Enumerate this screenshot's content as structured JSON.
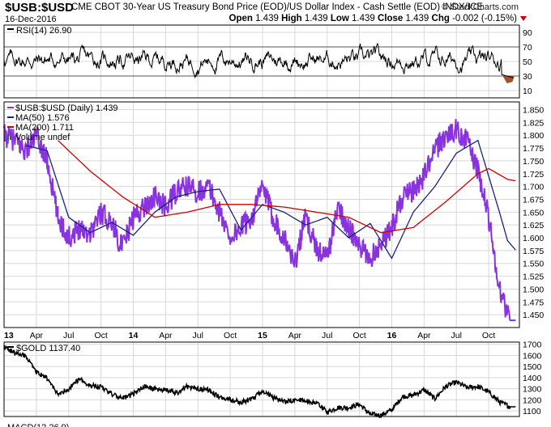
{
  "header": {
    "ticker": "$USB:$USD",
    "description": "CME CBOT 30-Year US Treasury Bond Price (EOD)/US Dollar Index - Cash Settle (EOD)  INDX/ICE",
    "brand": "© StockCharts.com",
    "date": "16-Dec-2016",
    "open_label": "Open",
    "open": "1.439",
    "high_label": "High",
    "high": "1.439",
    "low_label": "Low",
    "low": "1.439",
    "close_label": "Close",
    "close": "1.439",
    "chg_label": "Chg",
    "chg": "-0.002 (-0.15%)"
  },
  "colors": {
    "price": "#8833dd",
    "ma50": "#1a237e",
    "ma200": "#cc0000",
    "rsi": "#000000",
    "gold": "#000000",
    "rsi_oversold_fill": "#a0522d",
    "grid": "#d8d8d8",
    "arrow_down": "#c00000"
  },
  "legend_main": [
    {
      "text": "$USB:$USD (Daily) 1.439",
      "color": "#8833dd",
      "icon": "line-swatch"
    },
    {
      "text": "MA(50) 1.576",
      "color": "#1a237e",
      "icon": "line-swatch"
    },
    {
      "text": "MA(200) 1.711",
      "color": "#cc0000",
      "icon": "line-swatch"
    },
    {
      "text": "Volume undef",
      "color": "#555555",
      "icon": "volume-bars-icon"
    }
  ],
  "legend_rsi": {
    "text": "RSI(14) 26.90"
  },
  "legend_gold": {
    "text": "$GOLD 1137.40"
  },
  "footer_partial": "MACD(12,26,9) ...",
  "chart_data": [
    {
      "type": "line",
      "name": "rsi-panel",
      "series": [
        {
          "name": "RSI(14)",
          "last": 26.9
        }
      ],
      "yticks": [
        10,
        30,
        50,
        70,
        90
      ],
      "ylim": [
        0,
        100
      ],
      "reference_lines": [
        70,
        30
      ]
    },
    {
      "type": "line",
      "name": "price-panel",
      "series": [
        {
          "name": "$USB:$USD (Daily)",
          "last": 1.439,
          "points": [
            [
              "2013-01",
              1.8
            ],
            [
              "2013-02",
              1.79
            ],
            [
              "2013-03",
              1.77
            ],
            [
              "2013-04",
              1.8
            ],
            [
              "2013-05",
              1.75
            ],
            [
              "2013-06",
              1.64
            ],
            [
              "2013-07",
              1.6
            ],
            [
              "2013-08",
              1.62
            ],
            [
              "2013-09",
              1.61
            ],
            [
              "2013-10",
              1.65
            ],
            [
              "2013-11",
              1.63
            ],
            [
              "2013-12",
              1.58
            ],
            [
              "2014-01",
              1.64
            ],
            [
              "2014-02",
              1.66
            ],
            [
              "2014-03",
              1.68
            ],
            [
              "2014-04",
              1.66
            ],
            [
              "2014-05",
              1.69
            ],
            [
              "2014-06",
              1.7
            ],
            [
              "2014-07",
              1.69
            ],
            [
              "2014-08",
              1.7
            ],
            [
              "2014-09",
              1.65
            ],
            [
              "2014-10",
              1.6
            ],
            [
              "2014-11",
              1.62
            ],
            [
              "2014-12",
              1.64
            ],
            [
              "2015-01",
              1.7
            ],
            [
              "2015-02",
              1.64
            ],
            [
              "2015-03",
              1.6
            ],
            [
              "2015-04",
              1.55
            ],
            [
              "2015-05",
              1.64
            ],
            [
              "2015-06",
              1.58
            ],
            [
              "2015-07",
              1.56
            ],
            [
              "2015-08",
              1.66
            ],
            [
              "2015-09",
              1.62
            ],
            [
              "2015-10",
              1.58
            ],
            [
              "2015-11",
              1.56
            ],
            [
              "2015-12",
              1.59
            ],
            [
              "2016-01",
              1.62
            ],
            [
              "2016-02",
              1.68
            ],
            [
              "2016-03",
              1.69
            ],
            [
              "2016-04",
              1.72
            ],
            [
              "2016-05",
              1.77
            ],
            [
              "2016-06",
              1.8
            ],
            [
              "2016-07",
              1.81
            ],
            [
              "2016-08",
              1.79
            ],
            [
              "2016-09",
              1.73
            ],
            [
              "2016-10",
              1.64
            ],
            [
              "2016-11",
              1.5
            ],
            [
              "2016-12",
              1.439
            ]
          ]
        },
        {
          "name": "MA(50)",
          "last": 1.576,
          "points": [
            [
              "2013-03",
              1.78
            ],
            [
              "2013-05",
              1.77
            ],
            [
              "2013-07",
              1.64
            ],
            [
              "2013-09",
              1.61
            ],
            [
              "2013-11",
              1.63
            ],
            [
              "2014-01",
              1.605
            ],
            [
              "2014-03",
              1.65
            ],
            [
              "2014-05",
              1.68
            ],
            [
              "2014-07",
              1.69
            ],
            [
              "2014-09",
              1.695
            ],
            [
              "2014-11",
              1.615
            ],
            [
              "2015-01",
              1.665
            ],
            [
              "2015-03",
              1.65
            ],
            [
              "2015-05",
              1.625
            ],
            [
              "2015-07",
              1.64
            ],
            [
              "2015-09",
              1.6
            ],
            [
              "2015-11",
              1.628
            ],
            [
              "2016-01",
              1.56
            ],
            [
              "2016-03",
              1.65
            ],
            [
              "2016-05",
              1.7
            ],
            [
              "2016-07",
              1.765
            ],
            [
              "2016-09",
              1.79
            ],
            [
              "2016-11",
              1.65
            ],
            [
              "2016-12",
              1.576
            ]
          ]
        },
        {
          "name": "MA(200)",
          "last": 1.711,
          "points": [
            [
              "2013-06",
              1.79
            ],
            [
              "2013-09",
              1.73
            ],
            [
              "2013-12",
              1.68
            ],
            [
              "2014-03",
              1.64
            ],
            [
              "2014-06",
              1.65
            ],
            [
              "2014-09",
              1.665
            ],
            [
              "2014-12",
              1.665
            ],
            [
              "2015-03",
              1.66
            ],
            [
              "2015-06",
              1.65
            ],
            [
              "2015-09",
              1.64
            ],
            [
              "2015-12",
              1.61
            ],
            [
              "2016-03",
              1.62
            ],
            [
              "2016-06",
              1.67
            ],
            [
              "2016-09",
              1.725
            ],
            [
              "2016-10",
              1.735
            ],
            [
              "2016-12",
              1.711
            ]
          ]
        }
      ],
      "yticks": [
        1.45,
        1.475,
        1.5,
        1.525,
        1.55,
        1.575,
        1.6,
        1.625,
        1.65,
        1.675,
        1.7,
        1.725,
        1.75,
        1.775,
        1.8,
        1.825,
        1.85
      ],
      "yticks_text": [
        "1.450",
        "1.475",
        "1.500",
        "1.525",
        "1.550",
        "1.575",
        "1.600",
        "1.625",
        "1.650",
        "1.675",
        "1.700",
        "1.725",
        "1.750",
        "1.775",
        "1.800",
        "1.825",
        "1.850"
      ],
      "ylim": [
        1.425,
        1.865
      ],
      "xticks": [
        "13",
        "Apr",
        "Jul",
        "Oct",
        "14",
        "Apr",
        "Jul",
        "Oct",
        "15",
        "Apr",
        "Jul",
        "Oct",
        "16",
        "Apr",
        "Jul",
        "Oct"
      ],
      "xtick_months": [
        "2013-01",
        "2013-04",
        "2013-07",
        "2013-10",
        "2014-01",
        "2014-04",
        "2014-07",
        "2014-10",
        "2015-01",
        "2015-04",
        "2015-07",
        "2015-10",
        "2016-01",
        "2016-04",
        "2016-07",
        "2016-10"
      ],
      "xlim": [
        "2013-01",
        "2016-12"
      ],
      "grid": true
    },
    {
      "type": "line",
      "name": "gold-panel",
      "series": [
        {
          "name": "$GOLD",
          "last": 1137.4,
          "points": [
            [
              "2013-01",
              1680
            ],
            [
              "2013-02",
              1620
            ],
            [
              "2013-03",
              1600
            ],
            [
              "2013-04",
              1450
            ],
            [
              "2013-05",
              1390
            ],
            [
              "2013-06",
              1250
            ],
            [
              "2013-07",
              1300
            ],
            [
              "2013-08",
              1390
            ],
            [
              "2013-09",
              1330
            ],
            [
              "2013-10",
              1320
            ],
            [
              "2013-11",
              1250
            ],
            [
              "2013-12",
              1210
            ],
            [
              "2014-01",
              1250
            ],
            [
              "2014-02",
              1320
            ],
            [
              "2014-03",
              1300
            ],
            [
              "2014-04",
              1290
            ],
            [
              "2014-05",
              1260
            ],
            [
              "2014-06",
              1320
            ],
            [
              "2014-07",
              1300
            ],
            [
              "2014-08",
              1290
            ],
            [
              "2014-09",
              1220
            ],
            [
              "2014-10",
              1200
            ],
            [
              "2014-11",
              1180
            ],
            [
              "2014-12",
              1200
            ],
            [
              "2015-01",
              1280
            ],
            [
              "2015-02",
              1220
            ],
            [
              "2015-03",
              1180
            ],
            [
              "2015-04",
              1200
            ],
            [
              "2015-05",
              1190
            ],
            [
              "2015-06",
              1170
            ],
            [
              "2015-07",
              1090
            ],
            [
              "2015-08",
              1130
            ],
            [
              "2015-09",
              1130
            ],
            [
              "2015-10",
              1160
            ],
            [
              "2015-11",
              1070
            ],
            [
              "2015-12",
              1060
            ],
            [
              "2016-01",
              1110
            ],
            [
              "2016-02",
              1230
            ],
            [
              "2016-03",
              1240
            ],
            [
              "2016-04",
              1290
            ],
            [
              "2016-05",
              1210
            ],
            [
              "2016-06",
              1320
            ],
            [
              "2016-07",
              1360
            ],
            [
              "2016-08",
              1310
            ],
            [
              "2016-09",
              1320
            ],
            [
              "2016-10",
              1270
            ],
            [
              "2016-11",
              1180
            ],
            [
              "2016-12",
              1137.4
            ]
          ]
        }
      ],
      "yticks": [
        1100,
        1200,
        1300,
        1400,
        1500,
        1600,
        1700
      ],
      "ylim": [
        1050,
        1720
      ],
      "grid": true
    }
  ]
}
